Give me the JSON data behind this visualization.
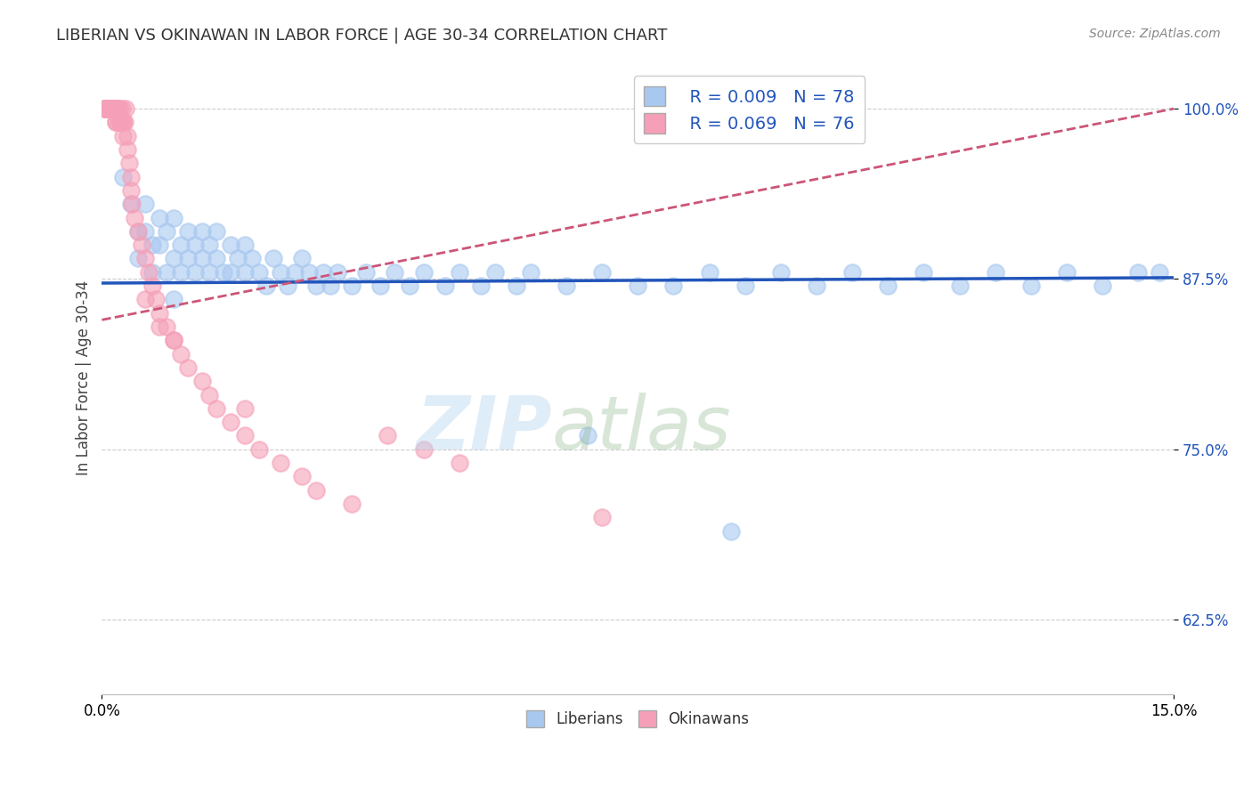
{
  "title": "LIBERIAN VS OKINAWAN IN LABOR FORCE | AGE 30-34 CORRELATION CHART",
  "source_text": "Source: ZipAtlas.com",
  "ylabel": "In Labor Force | Age 30-34",
  "xlim": [
    0.0,
    15.0
  ],
  "ylim": [
    57.0,
    103.5
  ],
  "yticks": [
    62.5,
    75.0,
    87.5,
    100.0
  ],
  "xticks": [
    0.0,
    15.0
  ],
  "liberian_color": "#a8c8f0",
  "okinawan_color": "#f5a0b8",
  "liberian_line_color": "#2255bb",
  "okinawan_line_color": "#cc5577",
  "legend_r1": "R = 0.009",
  "legend_n1": "N = 78",
  "legend_r2": "R = 0.069",
  "legend_n2": "N = 76",
  "liberian_x": [
    0.3,
    0.4,
    0.5,
    0.5,
    0.6,
    0.6,
    0.7,
    0.7,
    0.8,
    0.8,
    0.9,
    0.9,
    1.0,
    1.0,
    1.0,
    1.1,
    1.1,
    1.2,
    1.2,
    1.3,
    1.3,
    1.4,
    1.4,
    1.5,
    1.5,
    1.6,
    1.6,
    1.7,
    1.8,
    1.8,
    1.9,
    2.0,
    2.0,
    2.1,
    2.2,
    2.3,
    2.4,
    2.5,
    2.6,
    2.7,
    2.8,
    2.9,
    3.0,
    3.1,
    3.2,
    3.3,
    3.5,
    3.7,
    3.9,
    4.1,
    4.3,
    4.5,
    4.8,
    5.0,
    5.3,
    5.5,
    5.8,
    6.0,
    6.5,
    7.0,
    7.5,
    8.0,
    8.5,
    9.0,
    9.5,
    10.0,
    10.5,
    11.0,
    11.5,
    12.0,
    12.5,
    13.0,
    13.5,
    14.0,
    14.5,
    14.8,
    6.8,
    8.8
  ],
  "liberian_y": [
    95,
    93,
    91,
    89,
    93,
    91,
    90,
    88,
    92,
    90,
    88,
    91,
    89,
    92,
    86,
    90,
    88,
    91,
    89,
    90,
    88,
    91,
    89,
    90,
    88,
    91,
    89,
    88,
    90,
    88,
    89,
    88,
    90,
    89,
    88,
    87,
    89,
    88,
    87,
    88,
    89,
    88,
    87,
    88,
    87,
    88,
    87,
    88,
    87,
    88,
    87,
    88,
    87,
    88,
    87,
    88,
    87,
    88,
    87,
    88,
    87,
    87,
    88,
    87,
    88,
    87,
    88,
    87,
    88,
    87,
    88,
    87,
    88,
    87,
    88,
    88,
    76,
    69
  ],
  "okinawan_x": [
    0.05,
    0.05,
    0.05,
    0.05,
    0.05,
    0.07,
    0.07,
    0.08,
    0.08,
    0.09,
    0.09,
    0.1,
    0.1,
    0.1,
    0.12,
    0.12,
    0.12,
    0.15,
    0.15,
    0.15,
    0.15,
    0.17,
    0.18,
    0.18,
    0.2,
    0.2,
    0.2,
    0.2,
    0.22,
    0.22,
    0.25,
    0.25,
    0.25,
    0.27,
    0.28,
    0.3,
    0.3,
    0.3,
    0.32,
    0.33,
    0.35,
    0.35,
    0.38,
    0.4,
    0.4,
    0.42,
    0.45,
    0.5,
    0.55,
    0.6,
    0.65,
    0.7,
    0.75,
    0.8,
    0.9,
    1.0,
    1.1,
    1.2,
    1.4,
    1.5,
    1.6,
    1.8,
    2.0,
    2.2,
    2.5,
    2.8,
    3.0,
    3.5,
    4.0,
    4.5,
    5.0,
    7.0,
    0.6,
    0.8,
    1.0,
    2.0
  ],
  "okinawan_y": [
    100,
    100,
    100,
    100,
    100,
    100,
    100,
    100,
    100,
    100,
    100,
    100,
    100,
    100,
    100,
    100,
    100,
    100,
    100,
    100,
    100,
    100,
    100,
    100,
    100,
    100,
    99,
    99,
    100,
    100,
    99,
    99,
    100,
    99,
    100,
    99,
    99,
    98,
    99,
    100,
    98,
    97,
    96,
    95,
    94,
    93,
    92,
    91,
    90,
    89,
    88,
    87,
    86,
    85,
    84,
    83,
    82,
    81,
    80,
    79,
    78,
    77,
    76,
    75,
    74,
    73,
    72,
    71,
    76,
    75,
    74,
    70,
    86,
    84,
    83,
    78
  ]
}
